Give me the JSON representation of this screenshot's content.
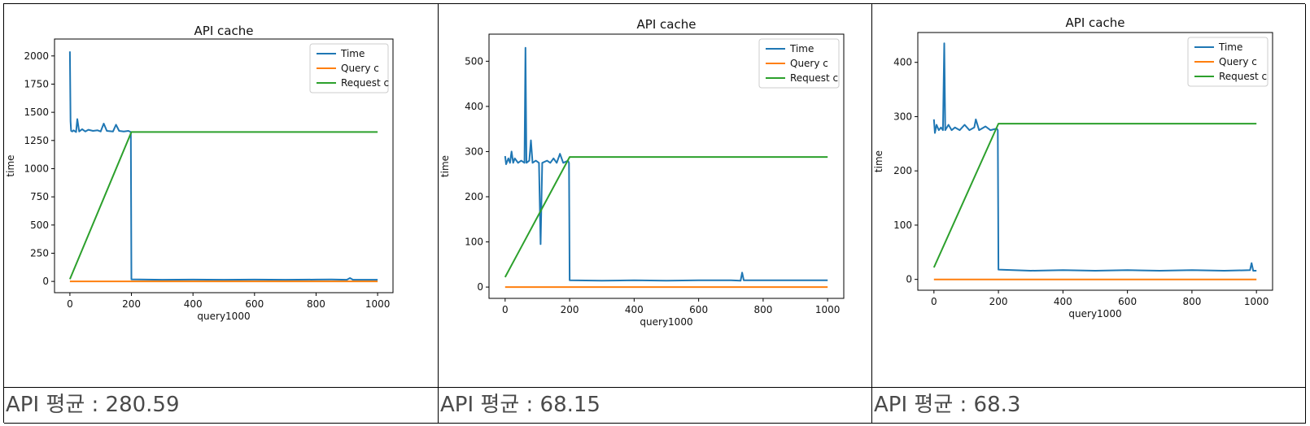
{
  "chart_data": [
    {
      "type": "line",
      "title": "API cache",
      "xlabel": "query1000",
      "ylabel": "time",
      "xlim": [
        0,
        1000
      ],
      "ylim": [
        -100,
        2150
      ],
      "xticks": [
        0,
        200,
        400,
        600,
        800,
        1000
      ],
      "yticks": [
        0,
        250,
        500,
        750,
        1000,
        1250,
        1500,
        1750,
        2000
      ],
      "legend": "top-right",
      "grid": false,
      "series": [
        {
          "name": "Time",
          "color": "#1f77b4",
          "points": [
            [
              0,
              2040
            ],
            [
              2,
              1420
            ],
            [
              4,
              1335
            ],
            [
              8,
              1330
            ],
            [
              12,
              1340
            ],
            [
              20,
              1325
            ],
            [
              24,
              1440
            ],
            [
              30,
              1330
            ],
            [
              40,
              1350
            ],
            [
              50,
              1330
            ],
            [
              60,
              1345
            ],
            [
              75,
              1335
            ],
            [
              90,
              1340
            ],
            [
              100,
              1330
            ],
            [
              110,
              1400
            ],
            [
              120,
              1335
            ],
            [
              140,
              1330
            ],
            [
              150,
              1390
            ],
            [
              160,
              1335
            ],
            [
              175,
              1330
            ],
            [
              190,
              1335
            ],
            [
              198,
              1325
            ],
            [
              200,
              18
            ],
            [
              300,
              15
            ],
            [
              400,
              16
            ],
            [
              500,
              15
            ],
            [
              600,
              16
            ],
            [
              700,
              15
            ],
            [
              800,
              16
            ],
            [
              850,
              17
            ],
            [
              900,
              15
            ],
            [
              910,
              30
            ],
            [
              920,
              15
            ],
            [
              1000,
              15
            ]
          ]
        },
        {
          "name": "Query c",
          "color": "#ff7f0e",
          "points": [
            [
              0,
              0
            ],
            [
              1000,
              0
            ]
          ]
        },
        {
          "name": "Request c",
          "color": "#2ca02c",
          "points": [
            [
              0,
              20
            ],
            [
              200,
              1325
            ],
            [
              1000,
              1325
            ]
          ]
        }
      ]
    },
    {
      "type": "line",
      "title": "API cache",
      "xlabel": "query1000",
      "ylabel": "time",
      "xlim": [
        0,
        1000
      ],
      "ylim": [
        -25,
        560
      ],
      "xticks": [
        0,
        200,
        400,
        600,
        800,
        1000
      ],
      "yticks": [
        0,
        100,
        200,
        300,
        400,
        500
      ],
      "legend": "top-right",
      "grid": false,
      "series": [
        {
          "name": "Time",
          "color": "#1f77b4",
          "points": [
            [
              0,
              290
            ],
            [
              3,
              272
            ],
            [
              10,
              285
            ],
            [
              15,
              275
            ],
            [
              20,
              300
            ],
            [
              25,
              275
            ],
            [
              30,
              285
            ],
            [
              40,
              275
            ],
            [
              50,
              280
            ],
            [
              60,
              275
            ],
            [
              63,
              530
            ],
            [
              66,
              275
            ],
            [
              75,
              280
            ],
            [
              80,
              325
            ],
            [
              85,
              275
            ],
            [
              95,
              280
            ],
            [
              105,
              275
            ],
            [
              110,
              95
            ],
            [
              115,
              275
            ],
            [
              130,
              280
            ],
            [
              140,
              275
            ],
            [
              150,
              285
            ],
            [
              160,
              275
            ],
            [
              170,
              295
            ],
            [
              180,
              275
            ],
            [
              195,
              280
            ],
            [
              198,
              275
            ],
            [
              200,
              15
            ],
            [
              300,
              14
            ],
            [
              400,
              15
            ],
            [
              500,
              14
            ],
            [
              600,
              15
            ],
            [
              700,
              15
            ],
            [
              730,
              14
            ],
            [
              735,
              32
            ],
            [
              740,
              15
            ],
            [
              800,
              15
            ],
            [
              900,
              15
            ],
            [
              1000,
              15
            ]
          ]
        },
        {
          "name": "Query c",
          "color": "#ff7f0e",
          "points": [
            [
              0,
              0
            ],
            [
              1000,
              0
            ]
          ]
        },
        {
          "name": "Request c",
          "color": "#2ca02c",
          "points": [
            [
              0,
              22
            ],
            [
              200,
              288
            ],
            [
              1000,
              288
            ]
          ]
        }
      ]
    },
    {
      "type": "line",
      "title": "API cache",
      "xlabel": "query1000",
      "ylabel": "time",
      "xlim": [
        0,
        1000
      ],
      "ylim": [
        -20,
        455
      ],
      "xticks": [
        0,
        200,
        400,
        600,
        800,
        1000
      ],
      "yticks": [
        0,
        100,
        200,
        300,
        400
      ],
      "legend": "top-right",
      "grid": false,
      "series": [
        {
          "name": "Time",
          "color": "#1f77b4",
          "points": [
            [
              0,
              295
            ],
            [
              3,
              270
            ],
            [
              8,
              285
            ],
            [
              15,
              275
            ],
            [
              22,
              280
            ],
            [
              28,
              275
            ],
            [
              32,
              435
            ],
            [
              35,
              275
            ],
            [
              45,
              285
            ],
            [
              55,
              275
            ],
            [
              65,
              280
            ],
            [
              80,
              275
            ],
            [
              95,
              285
            ],
            [
              110,
              275
            ],
            [
              125,
              280
            ],
            [
              130,
              295
            ],
            [
              140,
              275
            ],
            [
              160,
              282
            ],
            [
              175,
              275
            ],
            [
              195,
              278
            ],
            [
              198,
              275
            ],
            [
              200,
              18
            ],
            [
              300,
              16
            ],
            [
              400,
              17
            ],
            [
              500,
              16
            ],
            [
              600,
              17
            ],
            [
              700,
              16
            ],
            [
              800,
              17
            ],
            [
              900,
              16
            ],
            [
              980,
              17
            ],
            [
              985,
              30
            ],
            [
              990,
              16
            ],
            [
              1000,
              16
            ]
          ]
        },
        {
          "name": "Query c",
          "color": "#ff7f0e",
          "points": [
            [
              0,
              0
            ],
            [
              1000,
              0
            ]
          ]
        },
        {
          "name": "Request c",
          "color": "#2ca02c",
          "points": [
            [
              0,
              22
            ],
            [
              200,
              287
            ],
            [
              1000,
              287
            ]
          ]
        }
      ]
    }
  ],
  "captions": [
    "API 평균 : 280.59",
    "API 평균 : 68.15",
    "API 평균 : 68.3"
  ]
}
